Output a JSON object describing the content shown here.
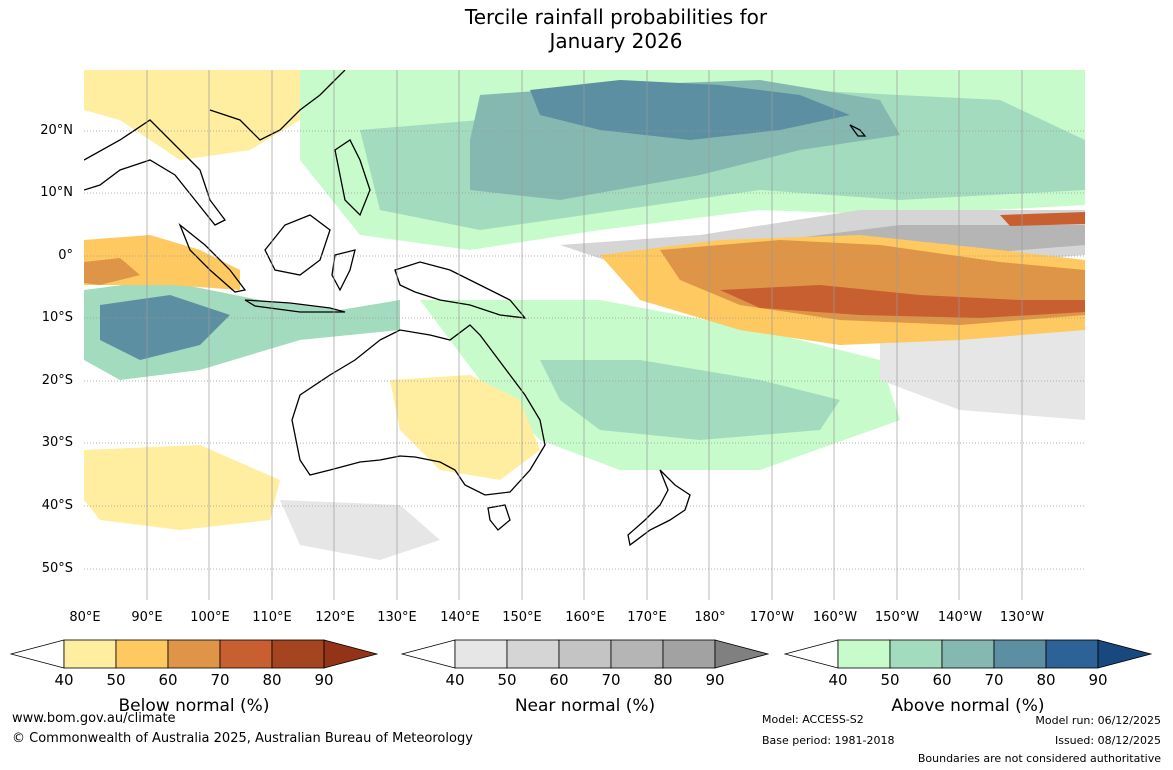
{
  "title": {
    "line1": "Tercile rainfall probabilities for",
    "line2": "January 2026"
  },
  "map": {
    "latitude_labels": [
      "20°N",
      "10°N",
      "0°",
      "10°S",
      "20°S",
      "30°S",
      "40°S",
      "50°S"
    ],
    "longitude_labels": [
      "80°E",
      "90°E",
      "100°E",
      "110°E",
      "120°E",
      "130°E",
      "140°E",
      "150°E",
      "160°E",
      "170°E",
      "180°",
      "170°W",
      "160°W",
      "150°W",
      "140°W",
      "130°W"
    ]
  },
  "colorbars": [
    {
      "label": "Below normal (%)",
      "ticks": [
        "40",
        "50",
        "60",
        "70",
        "80",
        "90"
      ],
      "colors": [
        "#ffffff",
        "#ffeda0",
        "#fec960",
        "#df9547",
        "#c85f30",
        "#a5451f",
        "#933418"
      ]
    },
    {
      "label": "Near normal (%)",
      "ticks": [
        "40",
        "50",
        "60",
        "70",
        "80",
        "90"
      ],
      "colors": [
        "#ffffff",
        "#e6e6e6",
        "#d5d5d5",
        "#c4c4c4",
        "#b5b5b5",
        "#a2a2a2",
        "#808080"
      ]
    },
    {
      "label": "Above normal (%)",
      "ticks": [
        "40",
        "50",
        "60",
        "70",
        "80",
        "90"
      ],
      "colors": [
        "#ffffff",
        "#c7fbcb",
        "#a3dbbf",
        "#84b8b1",
        "#5d8fa2",
        "#2d6297",
        "#19487f"
      ]
    }
  ],
  "footer": {
    "url": "www.bom.gov.au/climate",
    "copyright": "© Commonwealth of Australia 2025, Australian Bureau of Meteorology",
    "model": "Model: ACCESS-S2",
    "base_period": "Base period: 1981-2018",
    "model_run": "Model run: 06/12/2025",
    "issued": "Issued: 08/12/2025",
    "disclaimer": "Boundaries are not considered authoritative"
  }
}
